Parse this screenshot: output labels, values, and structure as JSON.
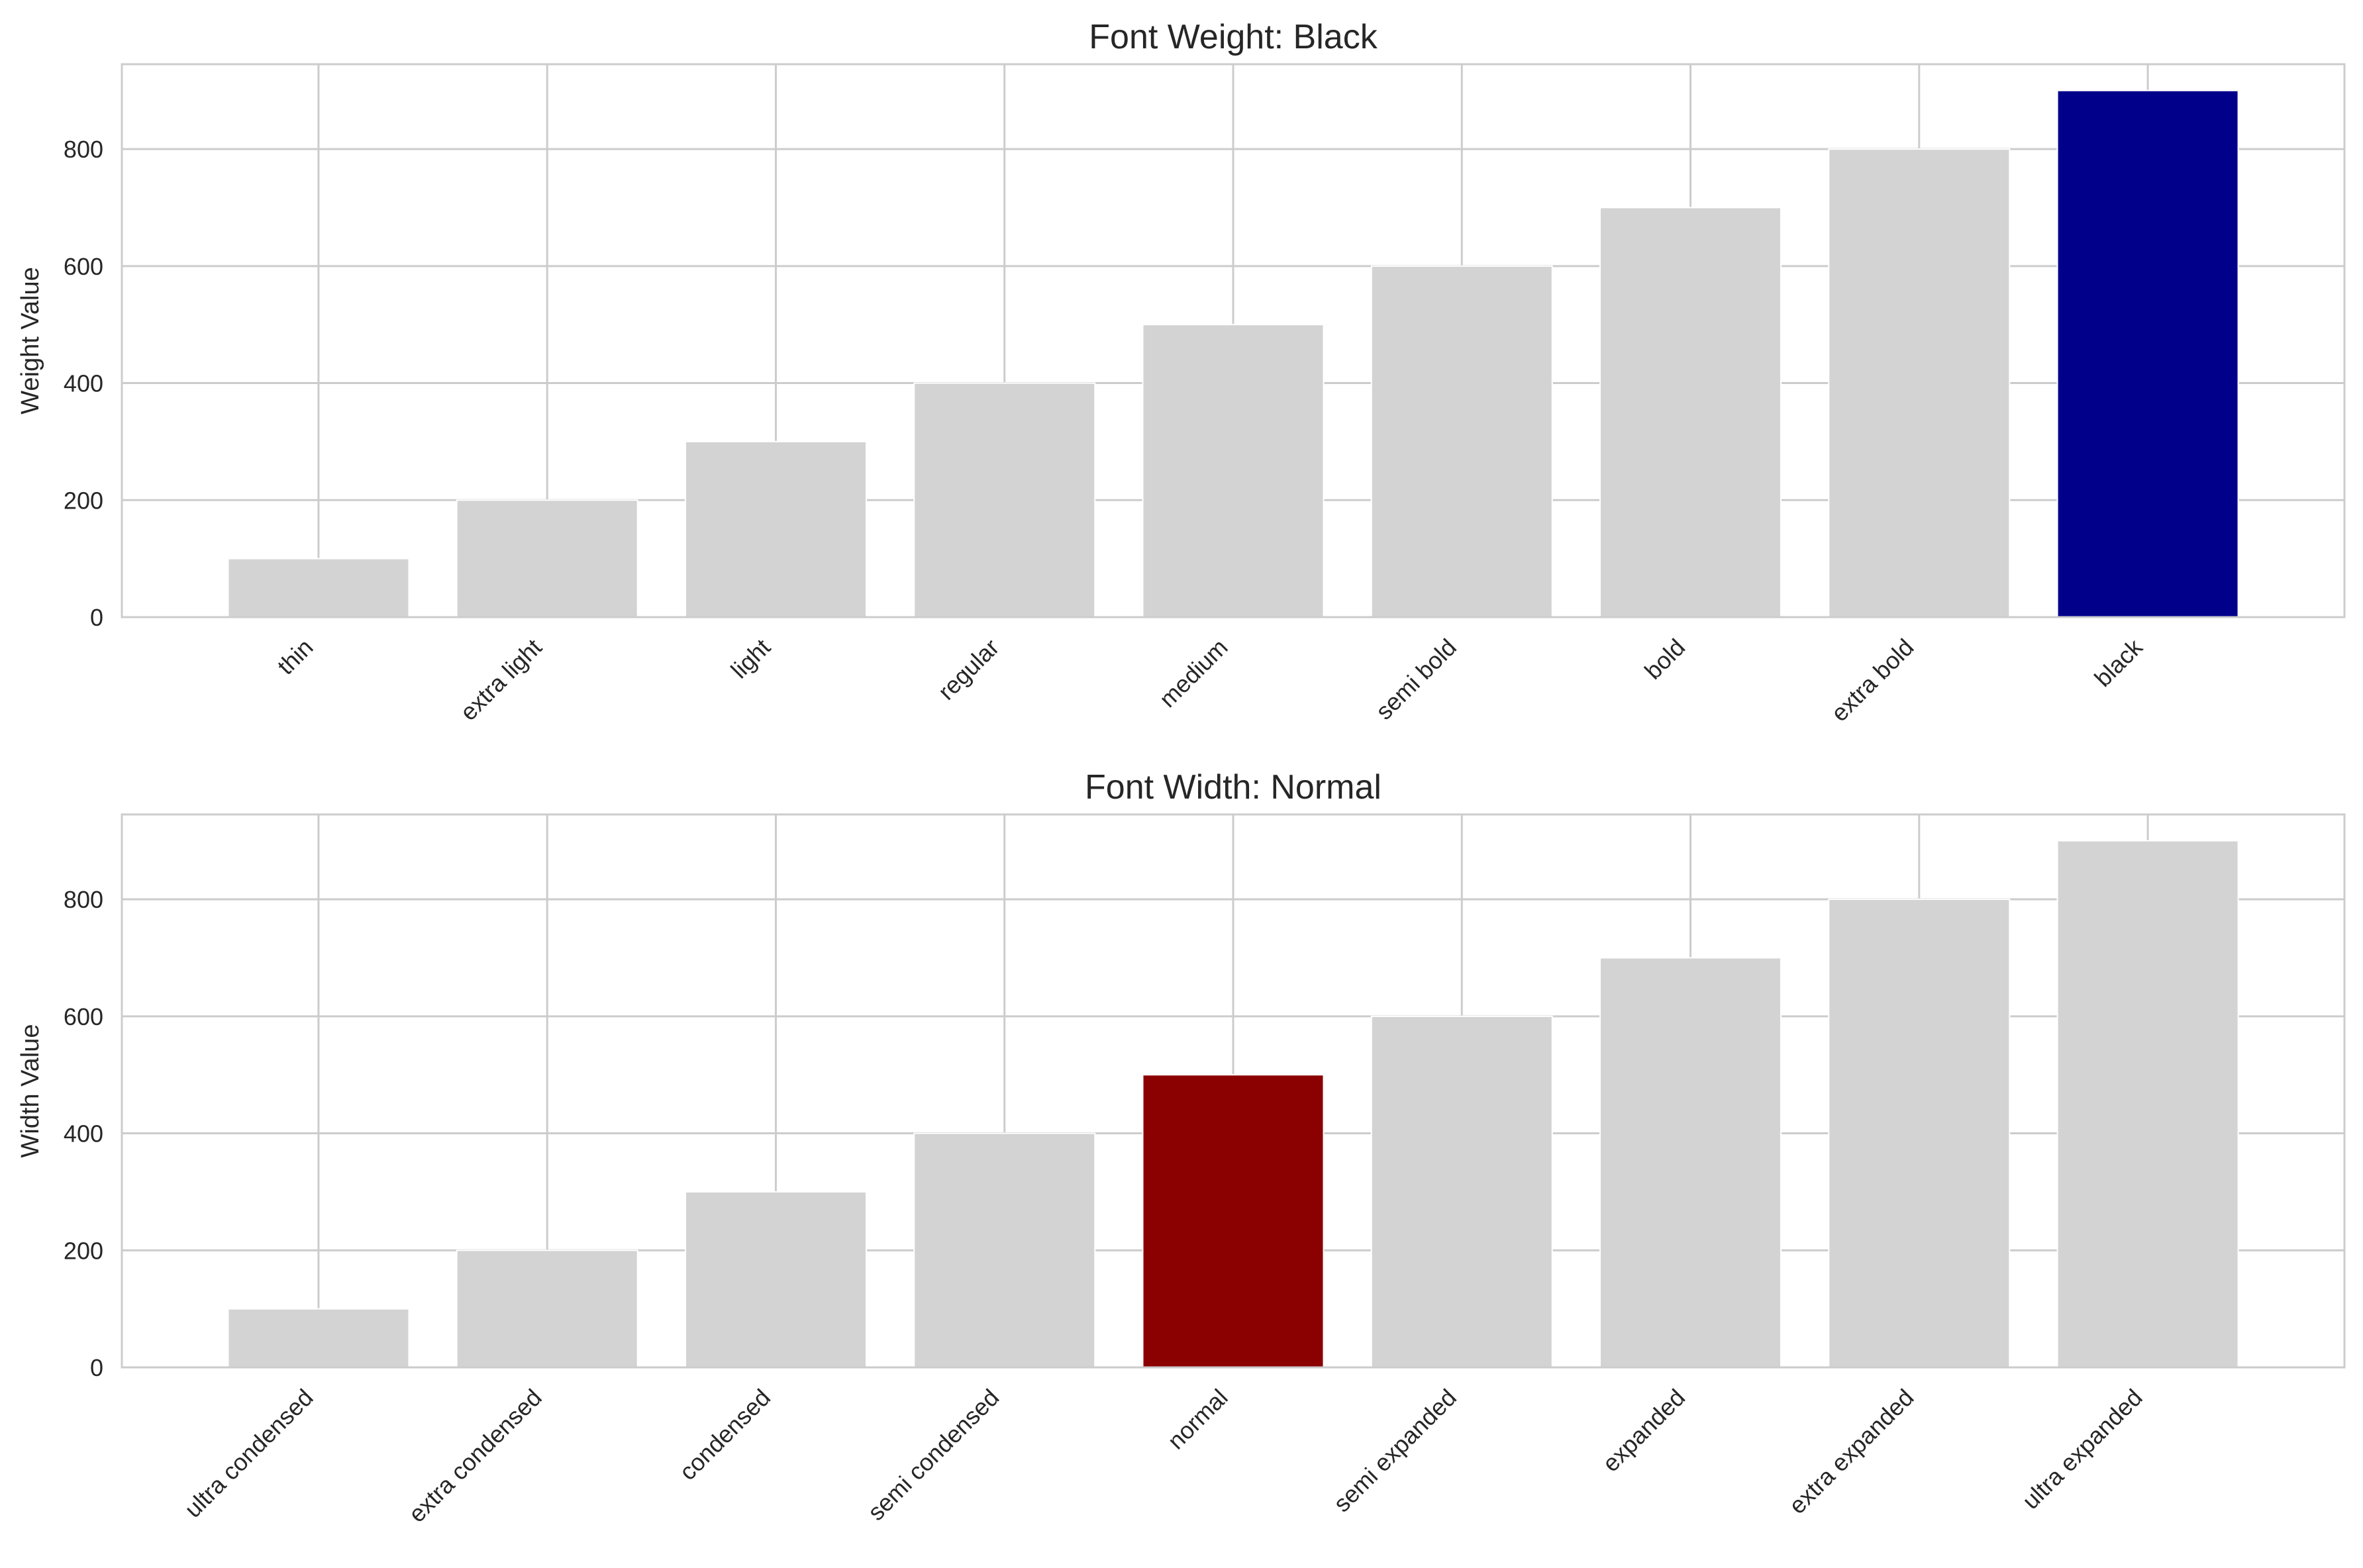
{
  "chart_data": [
    {
      "type": "bar",
      "title": "Font Weight: Black",
      "xlabel": "",
      "ylabel": "Weight Value",
      "categories": [
        "thin",
        "extra light",
        "light",
        "regular",
        "medium",
        "semi bold",
        "bold",
        "extra bold",
        "black"
      ],
      "values": [
        100,
        200,
        300,
        400,
        500,
        600,
        700,
        800,
        900
      ],
      "ylim": [
        0,
        945
      ],
      "yticks": [
        0,
        200,
        400,
        600,
        800
      ],
      "grid": true,
      "highlight_index": 8,
      "colors": {
        "default": "#d3d3d3",
        "highlight": "#00008b"
      }
    },
    {
      "type": "bar",
      "title": "Font Width: Normal",
      "xlabel": "",
      "ylabel": "Width Value",
      "categories": [
        "ultra condensed",
        "extra condensed",
        "condensed",
        "semi condensed",
        "normal",
        "semi expanded",
        "expanded",
        "extra expanded",
        "ultra expanded"
      ],
      "values": [
        100,
        200,
        300,
        400,
        500,
        600,
        700,
        800,
        900
      ],
      "ylim": [
        0,
        945
      ],
      "yticks": [
        0,
        200,
        400,
        600,
        800
      ],
      "grid": true,
      "highlight_index": 4,
      "colors": {
        "default": "#d3d3d3",
        "highlight": "#8b0000"
      }
    }
  ]
}
